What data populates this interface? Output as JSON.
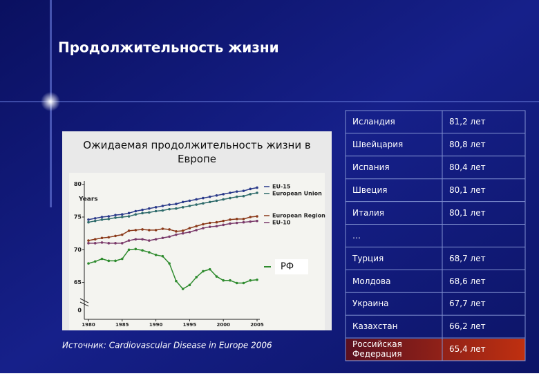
{
  "title": "Продолжительность жизни",
  "source": "Источник: Cardiovascular Disease in Europe 2006",
  "chart_data": {
    "type": "line",
    "title": "Ожидаемая продолжительность жизни в Европе",
    "y_label": "Years",
    "y_break_label": "0",
    "x": [
      1980,
      1981,
      1982,
      1983,
      1984,
      1985,
      1986,
      1987,
      1988,
      1989,
      1990,
      1991,
      1992,
      1993,
      1994,
      1995,
      1996,
      1997,
      1998,
      1999,
      2000,
      2001,
      2002,
      2003,
      2004,
      2005
    ],
    "xlim": [
      1980,
      2005
    ],
    "xticks": [
      1980,
      1985,
      1990,
      1995,
      2000,
      2005
    ],
    "ylim": [
      64,
      80.5
    ],
    "yticks": [
      65,
      70,
      75,
      80
    ],
    "series": [
      {
        "name": "EU-15",
        "color": "#2a3a8a",
        "values": [
          74.6,
          74.8,
          75.0,
          75.1,
          75.3,
          75.4,
          75.6,
          75.9,
          76.1,
          76.3,
          76.5,
          76.7,
          76.9,
          77.0,
          77.3,
          77.5,
          77.7,
          77.9,
          78.1,
          78.3,
          78.5,
          78.7,
          78.9,
          79.0,
          79.3,
          79.5
        ]
      },
      {
        "name": "European Union",
        "color": "#2e6b6b",
        "values": [
          74.2,
          74.4,
          74.6,
          74.7,
          74.9,
          75.0,
          75.1,
          75.4,
          75.6,
          75.7,
          75.9,
          76.0,
          76.2,
          76.3,
          76.5,
          76.7,
          76.9,
          77.1,
          77.3,
          77.5,
          77.7,
          77.9,
          78.1,
          78.2,
          78.5,
          78.7
        ]
      },
      {
        "name": "European Region",
        "color": "#8b3a1a",
        "values": [
          71.4,
          71.6,
          71.8,
          71.9,
          72.1,
          72.3,
          72.9,
          73.0,
          73.1,
          73.0,
          73.0,
          73.2,
          73.1,
          72.8,
          72.9,
          73.3,
          73.6,
          73.9,
          74.1,
          74.2,
          74.4,
          74.6,
          74.7,
          74.7,
          75.0,
          75.1
        ]
      },
      {
        "name": "EU-10",
        "color": "#7a3a6a",
        "values": [
          71.0,
          71.0,
          71.1,
          71.0,
          71.0,
          71.0,
          71.4,
          71.6,
          71.6,
          71.4,
          71.6,
          71.8,
          72.0,
          72.3,
          72.5,
          72.7,
          73.0,
          73.3,
          73.5,
          73.6,
          73.8,
          74.0,
          74.1,
          74.2,
          74.3,
          74.4
        ]
      },
      {
        "name": "РФ",
        "color": "#2e8b2e",
        "values": [
          67.9,
          68.2,
          68.6,
          68.3,
          68.3,
          68.6,
          70.0,
          70.1,
          69.9,
          69.6,
          69.2,
          69.0,
          67.9,
          65.2,
          64.0,
          64.6,
          65.8,
          66.7,
          67.0,
          65.9,
          65.3,
          65.3,
          64.9,
          64.9,
          65.3,
          65.4
        ]
      }
    ]
  },
  "table": {
    "rows": [
      [
        "Исландия",
        "81,2 лет"
      ],
      [
        "Швейцария",
        "80,8 лет"
      ],
      [
        "Испания",
        "80,4 лет"
      ],
      [
        "Швеция",
        "80,1 лет"
      ],
      [
        "Италия",
        "80,1 лет"
      ],
      [
        "…"
      ],
      [
        "Турция",
        "68,7 лет"
      ],
      [
        "Молдова",
        "68,6 лет"
      ],
      [
        "Украина",
        "67,7 лет"
      ],
      [
        "Казахстан",
        "66,2 лет"
      ],
      [
        "Российская Федерация",
        "65,4 лет"
      ]
    ]
  }
}
